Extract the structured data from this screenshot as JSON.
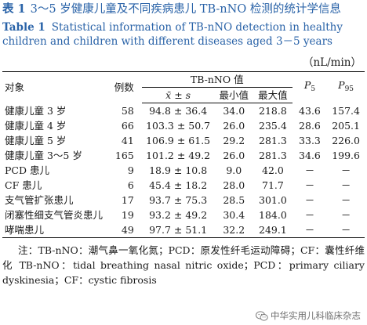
{
  "caption": {
    "cn_num": "表 1",
    "cn_title": "3～5 岁健康儿童及不同疾病患儿 TB-nNO 检测的统计学信息",
    "en_num": "Table 1",
    "en_title": "Statistical information of TB-nNO detection in healthy children and children with different diseases aged 3－5 years"
  },
  "unit": "（nL/min）",
  "headers": {
    "object": "对象",
    "count": "例数",
    "group": "TB-nNO 值",
    "mean": "x̄ ± s",
    "min": "最小值",
    "max": "最大值",
    "p5_letter": "P",
    "p5_sub": "5",
    "p95_letter": "P",
    "p95_sub": "95"
  },
  "rows": [
    {
      "object": "健康儿童 3 岁",
      "n": "58",
      "mean": "94.8 ± 36.4",
      "min": "34.0",
      "max": "218.8",
      "p5": "43.6",
      "p95": "157.4"
    },
    {
      "object": "健康儿童 4 岁",
      "n": "66",
      "mean": "103.3 ± 50.7",
      "min": "26.0",
      "max": "235.4",
      "p5": "28.6",
      "p95": "205.1"
    },
    {
      "object": "健康儿童 5 岁",
      "n": "41",
      "mean": "106.9 ± 61.5",
      "min": "29.2",
      "max": "281.3",
      "p5": "33.3",
      "p95": "226.0"
    },
    {
      "object": "健康儿童 3～5 岁",
      "n": "165",
      "mean": "101.2 ± 49.2",
      "min": "26.0",
      "max": "281.3",
      "p5": "34.6",
      "p95": "199.6"
    },
    {
      "object": "PCD 患儿",
      "n": "9",
      "mean": "18.9 ± 10.8",
      "min": "9.0",
      "max": "42.0",
      "p5": "－",
      "p95": "－"
    },
    {
      "object": "CF 患儿",
      "n": "6",
      "mean": "45.4 ± 18.2",
      "min": "28.0",
      "max": "71.7",
      "p5": "－",
      "p95": "－"
    },
    {
      "object": "支气管扩张患儿",
      "n": "17",
      "mean": "93.7 ± 75.3",
      "min": "28.5",
      "max": "301.0",
      "p5": "－",
      "p95": "－"
    },
    {
      "object": "闭塞性细支气管炎患儿",
      "n": "19",
      "mean": "93.2 ± 49.2",
      "min": "30.4",
      "max": "184.0",
      "p5": "－",
      "p95": "－"
    },
    {
      "object": "哮喘患儿",
      "n": "49",
      "mean": "97.7 ± 51.1",
      "min": "32.2",
      "max": "249.1",
      "p5": "－",
      "p95": "－"
    }
  ],
  "footnote": {
    "cn": "注：TB-nNO：潮气鼻一氧化氮；PCD：原发性纤毛运动障碍；CF：囊性纤维化",
    "en": "TB-nNO：tidal breathing nasal nitric oxide；PCD：primary ciliary dyskinesia；CF：cystic fibrosis"
  },
  "watermark": {
    "text": "中华实用儿科临床杂志",
    "icon": "wechat-icon",
    "color": "#6f6f6f"
  },
  "colors": {
    "caption": "#2a63a8"
  }
}
